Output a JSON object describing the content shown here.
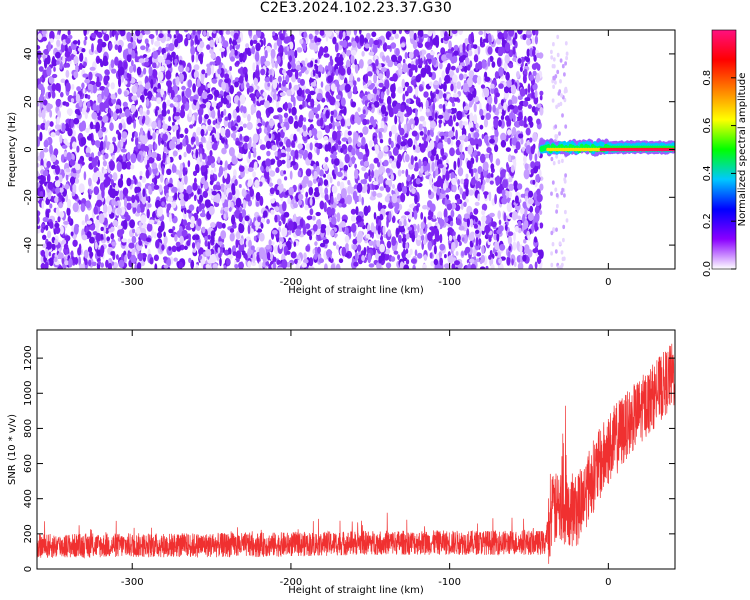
{
  "title": "C2E3.2024.102.23.37.G30",
  "chart_data": [
    {
      "type": "heatmap",
      "title": "C2E3.2024.102.23.37.G30",
      "xlabel": "Height of straight line (km)",
      "ylabel": "Frequency (Hz)",
      "xlim": [
        -360,
        42
      ],
      "ylim": [
        -50,
        50
      ],
      "xticks": [
        -300,
        -200,
        -100,
        0
      ],
      "yticks": [
        -40,
        -20,
        0,
        20,
        40
      ],
      "colorbar": {
        "label": "Normalized spectral amplitude",
        "range": [
          0.0,
          1.0
        ],
        "ticks": [
          0.0,
          0.2,
          0.4,
          0.6,
          0.8
        ],
        "colors": [
          "#ffffff",
          "#8a00ff",
          "#0000ff",
          "#00c8ff",
          "#00ff00",
          "#ffff00",
          "#ff8000",
          "#ff0000",
          "#ff1080"
        ]
      },
      "description_of_values": {
        "noise_region_x": [
          -360,
          -42
        ],
        "noise_amplitude": [
          0.05,
          0.25
        ],
        "signal_start_x": -42,
        "signal_frequency_hz": 0,
        "signal_amplitude_peak": 0.85
      }
    },
    {
      "type": "line",
      "xlabel": "Height of straight line (km)",
      "ylabel": "SNR (10 * v/v)",
      "xlim": [
        -360,
        42
      ],
      "ylim": [
        0,
        1360
      ],
      "xticks": [
        -300,
        -200,
        -100,
        0
      ],
      "yticks": [
        0,
        200,
        400,
        600,
        800,
        1000,
        1200
      ],
      "color": "#f03030",
      "series": [
        {
          "x": [
            -360,
            -300,
            -250,
            -200,
            -150,
            -100,
            -60,
            -40,
            -35,
            -30,
            -20,
            -10,
            0,
            10,
            20,
            30,
            40
          ],
          "y": [
            130,
            135,
            135,
            140,
            150,
            150,
            150,
            150,
            330,
            350,
            330,
            520,
            680,
            800,
            900,
            1000,
            1100
          ]
        }
      ]
    }
  ]
}
